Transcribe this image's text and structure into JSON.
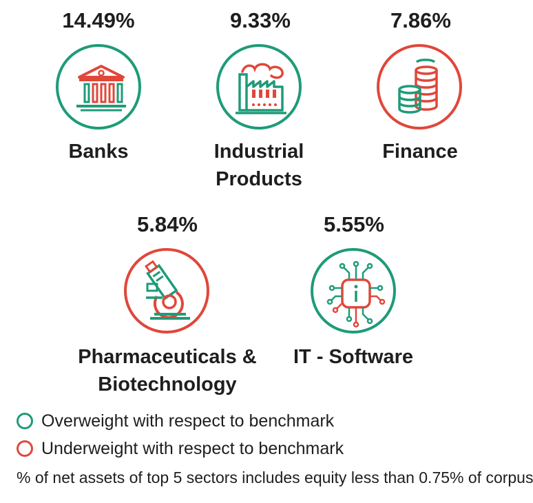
{
  "chart_data": {
    "type": "bar",
    "categories": [
      "Banks",
      "Industrial Products",
      "Finance",
      "Pharmaceuticals & Biotechnology",
      "IT - Software"
    ],
    "values": [
      14.49,
      9.33,
      7.86,
      5.84,
      5.55
    ],
    "value_labels": [
      "14.49%",
      "9.33%",
      "7.86%",
      "5.84%",
      "5.55%"
    ],
    "weight_status": [
      "overweight",
      "overweight",
      "underweight",
      "underweight",
      "overweight"
    ]
  },
  "sectors": [
    {
      "pct": "14.49%",
      "name": "Banks",
      "status": "overweight",
      "icon": "bank-building-icon"
    },
    {
      "pct": "9.33%",
      "name": "Industrial\nProducts",
      "status": "overweight",
      "icon": "factory-icon"
    },
    {
      "pct": "7.86%",
      "name": "Finance",
      "status": "underweight",
      "icon": "coins-stack-icon"
    },
    {
      "pct": "5.84%",
      "name": "Pharmaceuticals &\nBiotechnology",
      "status": "underweight",
      "icon": "microscope-icon"
    },
    {
      "pct": "5.55%",
      "name": "IT - Software",
      "status": "overweight",
      "icon": "chip-info-icon"
    }
  ],
  "legend": {
    "overweight": "Overweight with respect to benchmark",
    "underweight": "Underweight with respect to benchmark"
  },
  "footnote": "% of net assets of top 5 sectors includes equity less than 0.75% of corpus",
  "colors": {
    "overweight": "#1e9b78",
    "underweight": "#e0473a",
    "text": "#1e1e1e"
  }
}
